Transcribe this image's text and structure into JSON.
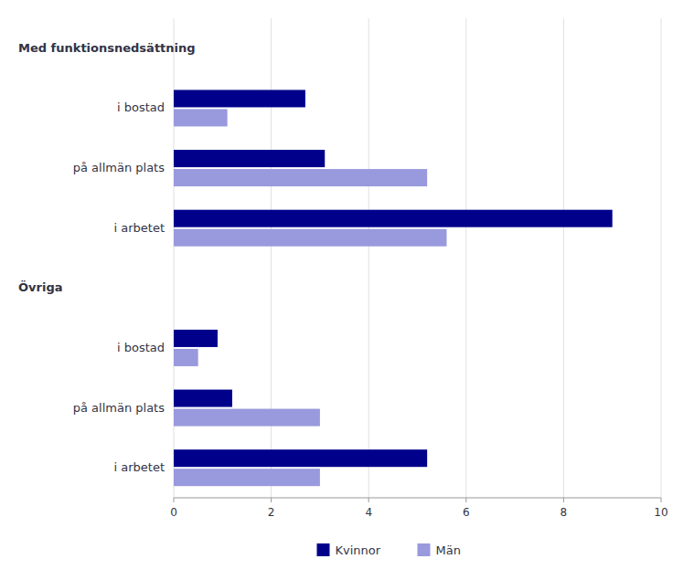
{
  "chart_data": {
    "type": "bar",
    "orientation": "horizontal",
    "categories": [
      "Med funktionsnedsättning",
      "i bostad",
      "på allmän plats",
      "i arbetet",
      "Övriga",
      "i bostad",
      "på allmän plats",
      "i arbetet"
    ],
    "series": [
      {
        "name": "Kvinnor",
        "color": "#00008B",
        "values": [
          null,
          2.7,
          3.1,
          9.0,
          null,
          0.9,
          1.2,
          5.2
        ]
      },
      {
        "name": "Män",
        "color": "#9999DD",
        "values": [
          null,
          1.1,
          5.2,
          5.6,
          null,
          0.5,
          3.0,
          3.0
        ]
      }
    ],
    "xlim": [
      0,
      10
    ],
    "xticks": [
      0,
      2,
      4,
      6,
      8,
      10
    ],
    "grid": true,
    "legend": "bottom"
  }
}
